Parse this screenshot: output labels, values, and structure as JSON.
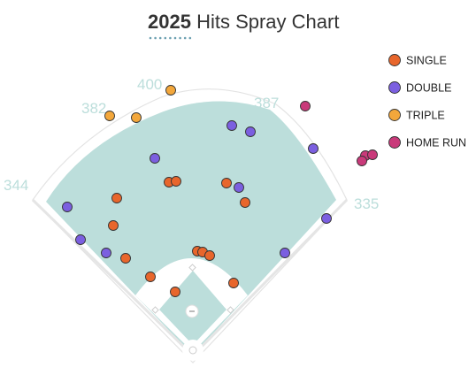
{
  "title": {
    "year": "2025",
    "rest": " Hits Spray Chart"
  },
  "colors": {
    "turf": "#bcdedb",
    "infield_dirt": "#ffffff",
    "wall_line": "#dddddd",
    "title_underline": "#6a9fb0",
    "distance_label": "#bcdedb"
  },
  "chart_data": {
    "type": "scatter",
    "title": "2025 Hits Spray Chart",
    "distance_markers": [
      {
        "label": "344",
        "position": "left-field-line"
      },
      {
        "label": "382",
        "position": "left-center"
      },
      {
        "label": "400",
        "position": "center"
      },
      {
        "label": "387",
        "position": "right-center"
      },
      {
        "label": "335",
        "position": "right-field-line"
      }
    ],
    "legend_position": "top-right",
    "series": [
      {
        "name": "SINGLE",
        "color": "#e8662c",
        "points": [
          [
            132,
            224
          ],
          [
            191,
            206
          ],
          [
            199,
            205
          ],
          [
            256,
            207
          ],
          [
            277,
            229
          ],
          [
            128,
            255
          ],
          [
            142,
            292
          ],
          [
            223,
            284
          ],
          [
            229,
            285
          ],
          [
            237,
            289
          ],
          [
            170,
            313
          ],
          [
            198,
            330
          ],
          [
            264,
            320
          ]
        ]
      },
      {
        "name": "DOUBLE",
        "color": "#7b5fe0",
        "points": [
          [
            262,
            142
          ],
          [
            283,
            149
          ],
          [
            175,
            179
          ],
          [
            270,
            212
          ],
          [
            76,
            234
          ],
          [
            91,
            271
          ],
          [
            120,
            286
          ],
          [
            354,
            168
          ],
          [
            369,
            247
          ],
          [
            322,
            286
          ]
        ]
      },
      {
        "name": "TRIPLE",
        "color": "#f3a73b",
        "points": [
          [
            124,
            131
          ],
          [
            154,
            133
          ],
          [
            193,
            102
          ]
        ]
      },
      {
        "name": "HOME RUN",
        "color": "#c93a7a",
        "points": [
          [
            345,
            120
          ],
          [
            413,
            176
          ],
          [
            421,
            175
          ],
          [
            409,
            182
          ]
        ]
      }
    ]
  }
}
